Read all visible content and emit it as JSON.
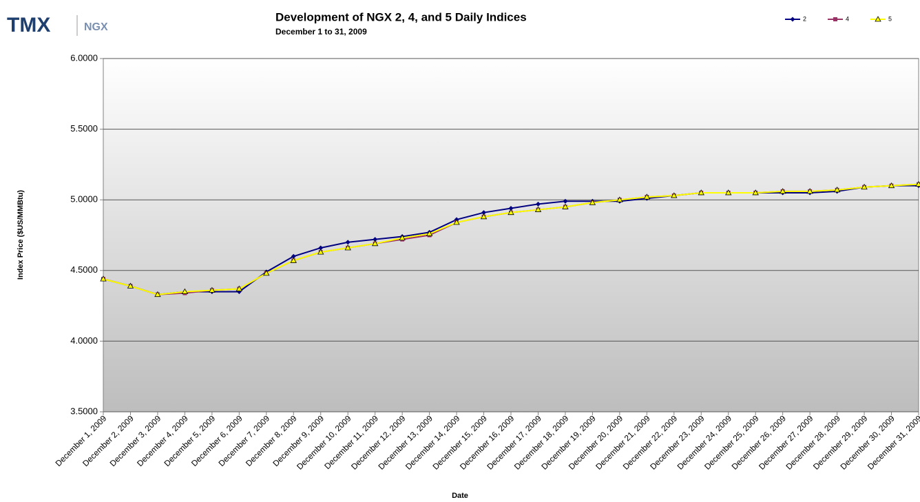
{
  "logo": {
    "left": "TMX",
    "right": "NGX"
  },
  "chart_data": {
    "type": "line",
    "title": "Development of NGX 2, 4, and 5 Daily Indices",
    "subtitle": "December 1 to 31, 2009",
    "x_label": "Date",
    "y_label": "Index Price ($US/MMBtu)",
    "categories": [
      "December 1, 2009",
      "December 2, 2009",
      "December 3, 2009",
      "December 4, 2009",
      "December 5, 2009",
      "December 6, 2009",
      "December 7, 2009",
      "December 8, 2009",
      "December 9, 2009",
      "December 10, 2009",
      "December 11, 2009",
      "December 12, 2009",
      "December 13, 2009",
      "December 14, 2009",
      "December 15, 2009",
      "December 16, 2009",
      "December 17, 2009",
      "December 18, 2009",
      "December 19, 2009",
      "December 20, 2009",
      "December 21, 2009",
      "December 22, 2009",
      "December 23, 2009",
      "December 24, 2009",
      "December 25, 2009",
      "December 26, 2009",
      "December 27, 2009",
      "December 28, 2009",
      "December 29, 2009",
      "December 30, 2009",
      "December 31, 2009"
    ],
    "series": [
      {
        "name": "2",
        "color": "#000080",
        "marker": "diamond",
        "values": [
          4.44,
          4.39,
          4.33,
          4.35,
          4.35,
          4.35,
          4.49,
          4.6,
          4.66,
          4.7,
          4.72,
          4.74,
          4.77,
          4.86,
          4.91,
          4.94,
          4.97,
          4.99,
          4.99,
          4.99,
          5.01,
          5.03,
          5.05,
          5.05,
          5.05,
          5.05,
          5.05,
          5.06,
          5.09,
          5.1,
          5.1
        ]
      },
      {
        "name": "4",
        "color": "#993366",
        "marker": "square",
        "values": [
          4.44,
          4.39,
          4.33,
          4.34,
          4.36,
          4.37,
          4.48,
          4.57,
          4.63,
          4.66,
          4.69,
          4.72,
          4.75,
          4.84,
          4.88,
          4.91,
          4.93,
          4.95,
          4.98,
          5.0,
          5.02,
          5.03,
          5.05,
          5.05,
          5.05,
          5.06,
          5.06,
          5.07,
          5.09,
          5.1,
          5.11
        ]
      },
      {
        "name": "5",
        "color": "#ffff00",
        "marker": "triangle",
        "values": [
          4.44,
          4.39,
          4.33,
          4.35,
          4.36,
          4.37,
          4.48,
          4.57,
          4.63,
          4.66,
          4.69,
          4.73,
          4.76,
          4.84,
          4.88,
          4.91,
          4.93,
          4.95,
          4.98,
          5.0,
          5.02,
          5.03,
          5.05,
          5.05,
          5.05,
          5.06,
          5.06,
          5.07,
          5.09,
          5.1,
          5.11
        ]
      }
    ],
    "ylim": [
      3.5,
      6.0
    ],
    "yticks": [
      {
        "value": 3.5,
        "label": "3.5000"
      },
      {
        "value": 4.0,
        "label": "4.0000"
      },
      {
        "value": 4.5,
        "label": "4.5000"
      },
      {
        "value": 5.0,
        "label": "5.0000"
      },
      {
        "value": 5.5,
        "label": "5.5000"
      },
      {
        "value": 6.0,
        "label": "6.0000"
      }
    ],
    "grid": true,
    "legend": "top-right"
  }
}
